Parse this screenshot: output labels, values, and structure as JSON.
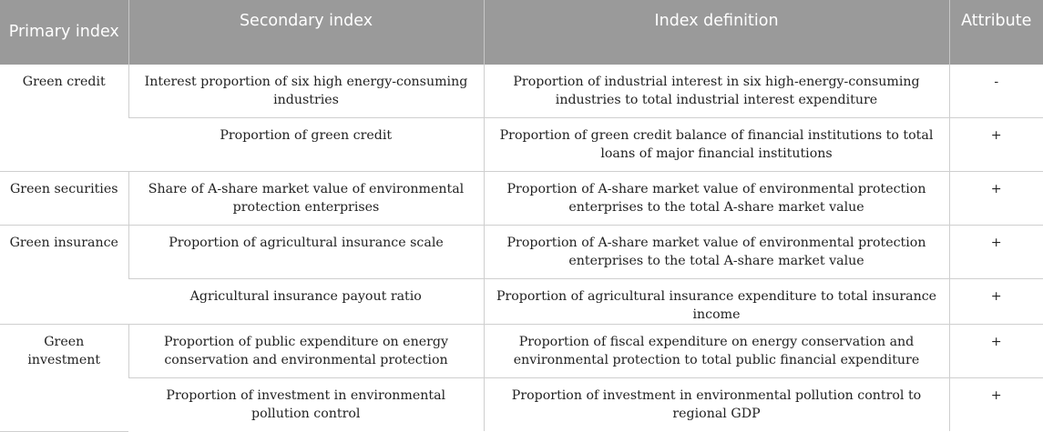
{
  "headers": {
    "primary": "Primary index",
    "secondary": "Secondary index",
    "definition": "Index definition",
    "attribute": "Attribute"
  },
  "groups": [
    {
      "primary": "Green credit",
      "rows": [
        {
          "secondary": "Interest proportion of six high energy-consuming industries",
          "definition": "Proportion of industrial interest in six high-energy-consuming industries to total industrial interest expenditure",
          "attribute": "-"
        },
        {
          "secondary": "Proportion of green credit",
          "definition": "Proportion of green credit balance of financial institutions to total loans of major financial institutions",
          "attribute": "+"
        }
      ]
    },
    {
      "primary": "Green securities",
      "rows": [
        {
          "secondary": "Share of A-share market value of environmental protection enterprises",
          "definition": "Proportion of A-share market value of environmental protection enterprises to the total A-share market value",
          "attribute": "+"
        }
      ]
    },
    {
      "primary": "Green insurance",
      "rows": [
        {
          "secondary": "Proportion of agricultural insurance scale",
          "definition": "Proportion of A-share market value of environmental protection enterprises to the total A-share market value",
          "attribute": "+"
        },
        {
          "secondary": "Agricultural insurance payout ratio",
          "definition": "Proportion of agricultural insurance expenditure to total insurance income",
          "attribute": "+"
        }
      ]
    },
    {
      "primary": "Green investment",
      "rows": [
        {
          "secondary": "Proportion of public expenditure on energy conservation and environmental protection",
          "definition": "Proportion of fiscal expenditure on energy conservation and environmental protection to total public financial expenditure",
          "attribute": "+"
        },
        {
          "secondary": "Proportion of investment in environmental pollution control",
          "definition": "Proportion of investment in environmental pollution control to regional GDP",
          "attribute": "+"
        }
      ]
    }
  ]
}
